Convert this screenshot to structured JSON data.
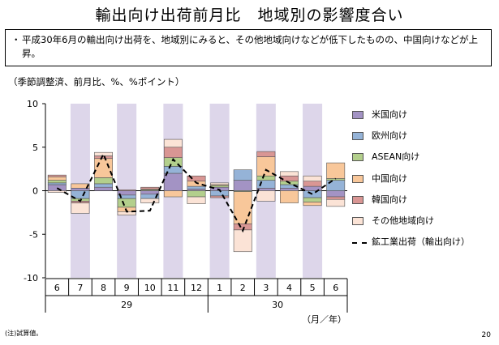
{
  "title": "輸出向け出荷前月比　地域別の影響度合い",
  "summary": {
    "bullet": "・",
    "text": "平成30年6月の輸出向け出荷を、地域別にみると、その他地域向けなどが低下したものの、中国向けなどが上昇。"
  },
  "unit_label": "（季節調整済、前月比、%、%ポイント）",
  "footnote": "(注)試算値。",
  "page_number": "20",
  "chart_data": {
    "type": "bar",
    "stacked": true,
    "x": [
      "6",
      "7",
      "8",
      "9",
      "10",
      "11",
      "12",
      "1",
      "2",
      "3",
      "4",
      "5",
      "6"
    ],
    "year_groups": [
      {
        "label": "29",
        "start": 0,
        "end": 6
      },
      {
        "label": "30",
        "start": 7,
        "end": 12
      }
    ],
    "xunit": "（月／年）",
    "ylim": [
      -10,
      10
    ],
    "yticks": [
      10,
      5,
      0,
      -5,
      -10
    ],
    "shaded_columns": [
      1,
      3,
      5,
      7,
      9,
      11
    ],
    "colors": {
      "shade": "#ddd6ea",
      "bar_stroke": "#555555",
      "line": "#000000"
    },
    "series": [
      {
        "name": "米国向け",
        "color": "#a393c4",
        "values": [
          0.7,
          0.3,
          0.4,
          -0.5,
          -0.4,
          2.0,
          0.2,
          0.4,
          1.2,
          0.3,
          0.3,
          0.5,
          -0.7
        ]
      },
      {
        "name": "欧州向け",
        "color": "#95b3d7",
        "values": [
          0.2,
          -0.9,
          0.4,
          -0.4,
          -0.5,
          0.8,
          0.3,
          -0.6,
          1.2,
          0.9,
          0.4,
          -0.8,
          1.2
        ]
      },
      {
        "name": "ASEAN向け",
        "color": "#b3cf8c",
        "values": [
          0.3,
          -0.3,
          0.7,
          -1.0,
          0.1,
          1.0,
          -0.7,
          0.2,
          -0.1,
          0.5,
          0.4,
          -0.5,
          0.2
        ]
      },
      {
        "name": "中国向け",
        "color": "#f8c79a",
        "values": [
          0.4,
          0.5,
          2.2,
          -0.5,
          0.1,
          -0.7,
          0.6,
          0.1,
          -3.7,
          2.2,
          -1.4,
          -0.4,
          1.8
        ]
      },
      {
        "name": "韓国向け",
        "color": "#d99694",
        "values": [
          0.2,
          -0.2,
          0.3,
          0.1,
          0.2,
          1.2,
          0.6,
          -0.2,
          -0.7,
          0.6,
          0.6,
          0.6,
          -0.3
        ]
      },
      {
        "name": "その他地域向け",
        "color": "#fbe3d6",
        "values": [
          -0.2,
          -1.2,
          0.4,
          -0.4,
          -0.5,
          0.9,
          -0.8,
          0.2,
          -2.5,
          -1.2,
          0.5,
          0.6,
          -0.8
        ]
      }
    ],
    "line": {
      "name": "鉱工業出荷（輸出向け）",
      "values": [
        0.3,
        -1.2,
        4.2,
        -2.4,
        -2.3,
        3.6,
        0.9,
        0.1,
        -4.6,
        2.4,
        0.9,
        -0.4,
        1.4
      ]
    }
  }
}
